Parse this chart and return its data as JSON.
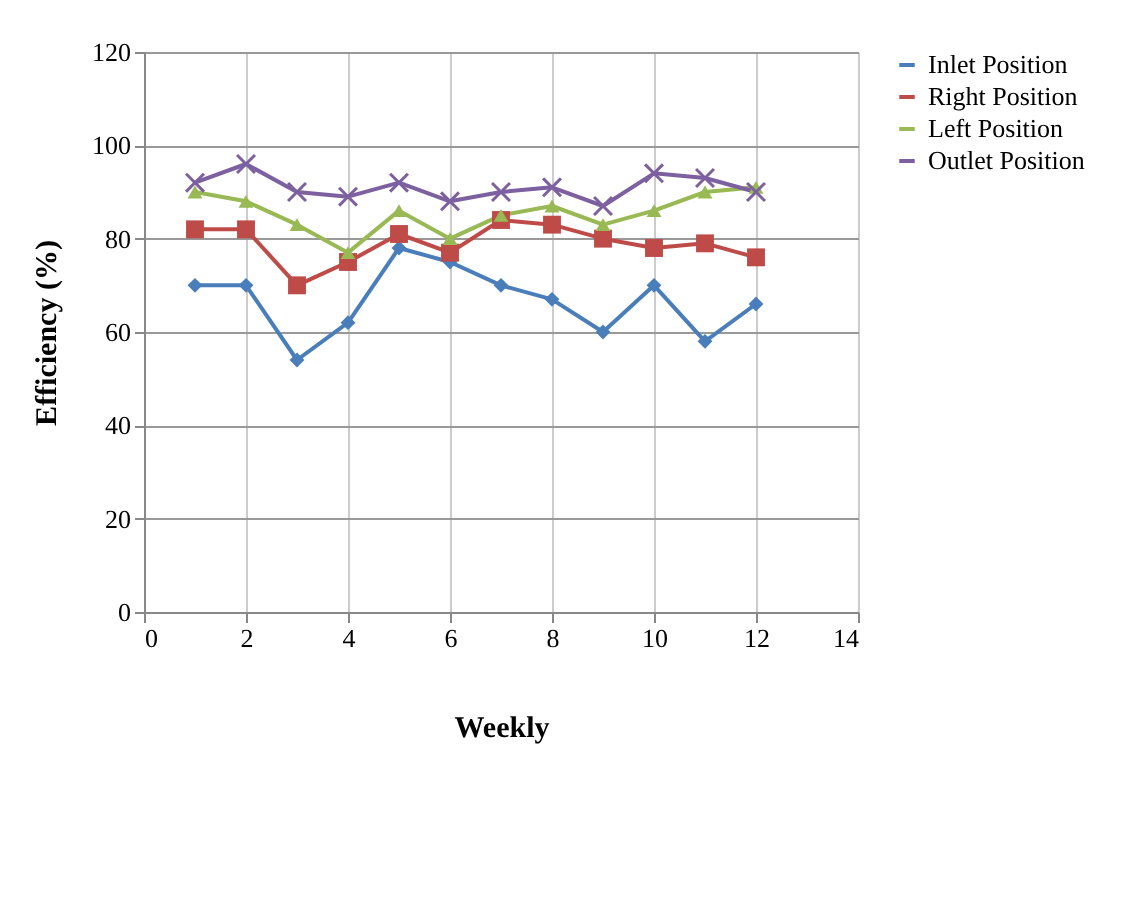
{
  "chart_data": {
    "type": "line",
    "xlabel": "Weekly",
    "ylabel": "Efficiency (%)",
    "x": [
      1,
      2,
      3,
      4,
      5,
      6,
      7,
      8,
      9,
      10,
      11,
      12
    ],
    "xlim": [
      0,
      14
    ],
    "xticks": [
      0,
      2,
      4,
      6,
      8,
      10,
      12,
      14
    ],
    "ylim": [
      0,
      120
    ],
    "yticks": [
      0,
      20,
      40,
      60,
      80,
      100,
      120
    ],
    "grid": true,
    "legend": "top right",
    "line_style": "solid",
    "series": [
      {
        "name": "Inlet Position",
        "color": "#4a7ebb",
        "marker": "diamond",
        "values": [
          70,
          70,
          54,
          62,
          78,
          75,
          70,
          67,
          60,
          70,
          58,
          66
        ]
      },
      {
        "name": "Right Position",
        "color": "#be4b48",
        "marker": "square",
        "values": [
          82,
          82,
          70,
          75,
          81,
          77,
          84,
          83,
          80,
          78,
          79,
          76
        ]
      },
      {
        "name": "Left Position",
        "color": "#98b954",
        "marker": "triangle",
        "values": [
          90,
          88,
          83,
          77,
          86,
          80,
          85,
          87,
          83,
          86,
          90,
          91
        ]
      },
      {
        "name": "Outlet Position",
        "color": "#7d60a0",
        "marker": "cross",
        "values": [
          92,
          96,
          90,
          89,
          92,
          88,
          90,
          91,
          87,
          94,
          93,
          90
        ]
      }
    ]
  }
}
